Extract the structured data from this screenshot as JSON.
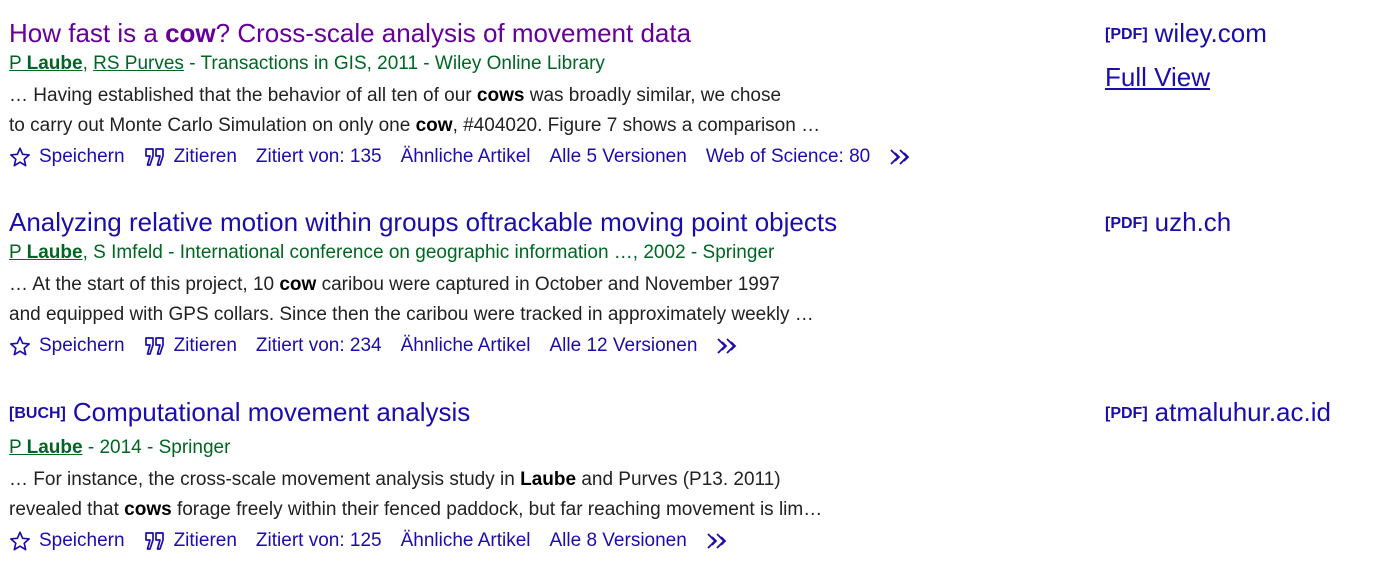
{
  "results": [
    {
      "title_pre": "How fast is a ",
      "title_bold": "cow",
      "title_post": "? Cross-scale analysis of movement data",
      "author1": "P ",
      "author1_bold": "Laube",
      "sep1": ", ",
      "author2": "RS Purves",
      "source": " - Transactions in GIS, 2011 - Wiley Online Library",
      "snippet1_a": "… Having established that the behavior of all ten of our ",
      "snippet1_b": "cows",
      "snippet1_c": " was broadly similar, we chose",
      "snippet2_a": "to carry out Monte Carlo Simulation on only one ",
      "snippet2_b": "cow",
      "snippet2_c": ", #404020. Figure 7 shows a comparison …",
      "actions": {
        "save": "Speichern",
        "cite": "Zitieren",
        "cited_by": "Zitiert von: 135",
        "related": "Ähnliche Artikel",
        "versions": "Alle 5 Versionen",
        "wos": "Web of Science: 80"
      },
      "side_tag": "[PDF]",
      "side_domain": "wiley.com",
      "side_full": "Full View"
    },
    {
      "title": "Analyzing relative motion within groups oftrackable moving point objects",
      "author1": "P ",
      "author1_bold": "Laube",
      "author2_plain": ", S Imfeld",
      "source": " - International conference on geographic information …, 2002 - Springer",
      "snippet1_a": "… At the start of this project, 10 ",
      "snippet1_b": "cow",
      "snippet1_c": " caribou were captured in October and November 1997",
      "snippet2": "and equipped with GPS collars. Since then the caribou were tracked in approximately weekly …",
      "actions": {
        "save": "Speichern",
        "cite": "Zitieren",
        "cited_by": "Zitiert von: 234",
        "related": "Ähnliche Artikel",
        "versions": "Alle 12 Versionen"
      },
      "side_tag": "[PDF]",
      "side_domain": "uzh.ch"
    },
    {
      "type_tag": "[BUCH]",
      "title": "Computational movement analysis",
      "author1": "P ",
      "author1_bold": "Laube",
      "source": " - 2014 - Springer",
      "snippet1_a": "… For instance, the cross-scale movement analysis study in ",
      "snippet1_b": "Laube",
      "snippet1_c": " and Purves (P13. 2011)",
      "snippet2_a": "revealed that ",
      "snippet2_b": "cows",
      "snippet2_c": " forage freely within their fenced paddock, but far reaching movement is lim…",
      "actions": {
        "save": "Speichern",
        "cite": "Zitieren",
        "cited_by": "Zitiert von: 125",
        "related": "Ähnliche Artikel",
        "versions": "Alle 8 Versionen"
      },
      "side_tag": "[PDF]",
      "side_domain": "atmaluhur.ac.id"
    }
  ],
  "icons": {
    "save": "star-outline-icon",
    "cite": "quote-icon",
    "more": "double-chevron-icon"
  },
  "colors": {
    "link": "#1a0dab",
    "visited": "#660099",
    "green": "#006621",
    "text": "#222222"
  }
}
